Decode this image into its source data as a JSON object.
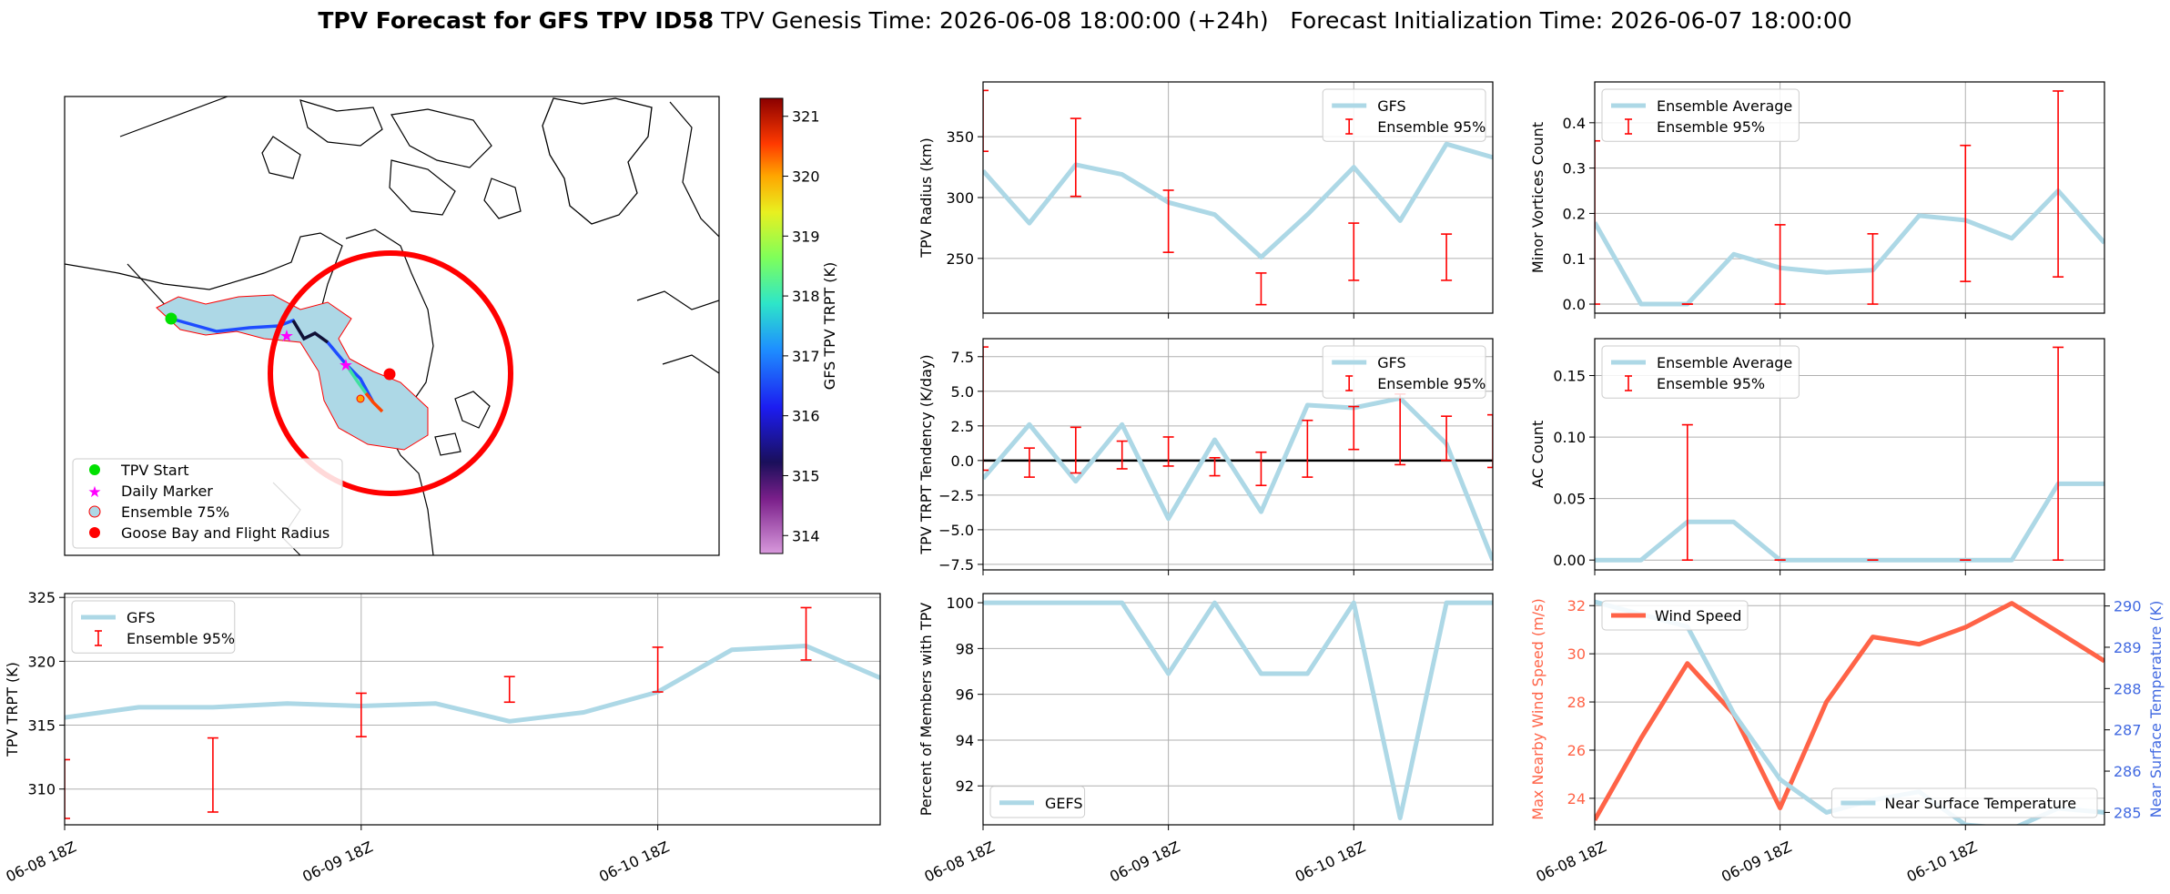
{
  "header": {
    "title_bold": "TPV Forecast for GFS TPV ID58",
    "title_rest": "TPV Genesis Time: 2026-06-08 18:00:00 (+24h)   Forecast Initialization Time: 2026-06-07 18:00:00"
  },
  "colors": {
    "gfs": "#add8e6",
    "ensemble": "#ff0000",
    "wind": "#ff6347",
    "temp_axis": "#4169e1",
    "zero_line": "#000000"
  },
  "map": {
    "colorbar_label": "GFS TPV TRPT (K)",
    "colorbar_ticks": [
      "314",
      "315",
      "316",
      "317",
      "318",
      "319",
      "320",
      "321"
    ],
    "colorbar_range": [
      313.7,
      321.3
    ],
    "legend": [
      "TPV Start",
      "Daily Marker",
      "Ensemble 75%",
      "Goose Bay and Flight Radius"
    ]
  },
  "chart_data": [
    {
      "id": "trpt",
      "type": "line",
      "ylabel": "TPV TRPT (K)",
      "xlim": [
        0,
        66
      ],
      "ylim": [
        307.2,
        325.3
      ],
      "yticks": [
        310,
        315,
        320,
        325
      ],
      "xticks": [
        0,
        24,
        48
      ],
      "xticklabels": [
        "06-08 18Z",
        "06-09 18Z",
        "06-10 18Z"
      ],
      "legend": [
        "GFS",
        "Ensemble 95%"
      ],
      "legend_loc": "upper left",
      "grid": true,
      "series": [
        {
          "name": "GFS",
          "x": [
            0,
            6,
            12,
            18,
            24,
            30,
            36,
            42,
            48,
            54,
            60,
            66
          ],
          "y": [
            315.6,
            316.4,
            316.4,
            316.7,
            316.5,
            316.7,
            315.3,
            316.0,
            317.6,
            320.9,
            321.2,
            318.7
          ]
        }
      ],
      "errorbars": [
        {
          "x": 0,
          "low": 307.7,
          "high": 312.3
        },
        {
          "x": 12,
          "low": 308.2,
          "high": 314.0
        },
        {
          "x": 24,
          "low": 314.1,
          "high": 317.5
        },
        {
          "x": 36,
          "low": 316.8,
          "high": 318.8
        },
        {
          "x": 48,
          "low": 317.6,
          "high": 321.1
        },
        {
          "x": 60,
          "low": 320.1,
          "high": 324.2
        }
      ]
    },
    {
      "id": "radius",
      "type": "line",
      "ylabel": "TPV Radius (km)",
      "xlim": [
        0,
        66
      ],
      "ylim": [
        205,
        395
      ],
      "yticks": [
        250,
        300,
        350
      ],
      "xticks": [
        0,
        24,
        48
      ],
      "xticklabels": [],
      "legend": [
        "GFS",
        "Ensemble 95%"
      ],
      "legend_loc": "upper right",
      "grid": true,
      "series": [
        {
          "name": "GFS",
          "x": [
            0,
            6,
            12,
            18,
            24,
            30,
            36,
            42,
            48,
            54,
            60,
            66
          ],
          "y": [
            322,
            279,
            327,
            319,
            296,
            286,
            251,
            286,
            325,
            281,
            344,
            333
          ]
        }
      ],
      "errorbars": [
        {
          "x": 0,
          "low": 338,
          "high": 388
        },
        {
          "x": 12,
          "low": 301,
          "high": 365
        },
        {
          "x": 24,
          "low": 255,
          "high": 306
        },
        {
          "x": 36,
          "low": 212,
          "high": 238
        },
        {
          "x": 48,
          "low": 232,
          "high": 279
        },
        {
          "x": 60,
          "low": 232,
          "high": 270
        }
      ]
    },
    {
      "id": "tendency",
      "type": "line",
      "ylabel": "TPV TRPT Tendency (K/day)",
      "xlim": [
        0,
        66
      ],
      "ylim": [
        -7.9,
        8.8
      ],
      "yticks": [
        -7.5,
        -5.0,
        -2.5,
        0.0,
        2.5,
        5.0,
        7.5
      ],
      "yticklabels": [
        "−7.5",
        "−5.0",
        "−2.5",
        "0.0",
        "2.5",
        "5.0",
        "7.5"
      ],
      "xticks": [
        0,
        24,
        48
      ],
      "xticklabels": [],
      "hline": 0,
      "legend": [
        "GFS",
        "Ensemble 95%"
      ],
      "legend_loc": "upper right",
      "grid": true,
      "series": [
        {
          "name": "GFS",
          "x": [
            0,
            6,
            12,
            18,
            24,
            30,
            36,
            42,
            48,
            54,
            60,
            66
          ],
          "y": [
            -1.3,
            2.6,
            -1.5,
            2.6,
            -4.2,
            1.5,
            -3.7,
            4.0,
            3.8,
            4.5,
            1.2,
            -7.2
          ]
        }
      ],
      "errorbars": [
        {
          "x": 0,
          "low": -0.7,
          "high": 8.2
        },
        {
          "x": 6,
          "low": -1.2,
          "high": 0.9
        },
        {
          "x": 12,
          "low": -0.9,
          "high": 2.4
        },
        {
          "x": 18,
          "low": -0.6,
          "high": 1.4
        },
        {
          "x": 24,
          "low": -0.4,
          "high": 1.7
        },
        {
          "x": 30,
          "low": -1.1,
          "high": 0.2
        },
        {
          "x": 36,
          "low": -1.8,
          "high": 0.6
        },
        {
          "x": 42,
          "low": -1.2,
          "high": 2.9
        },
        {
          "x": 48,
          "low": 0.8,
          "high": 3.9
        },
        {
          "x": 54,
          "low": -0.3,
          "high": 4.8
        },
        {
          "x": 60,
          "low": 0.0,
          "high": 3.2
        },
        {
          "x": 66,
          "low": -0.5,
          "high": 3.3
        }
      ]
    },
    {
      "id": "members",
      "type": "line",
      "ylabel": "Percent of Members with TPV",
      "xlim": [
        0,
        66
      ],
      "ylim": [
        90.3,
        100.4
      ],
      "yticks": [
        92,
        94,
        96,
        98,
        100
      ],
      "xticks": [
        0,
        24,
        48
      ],
      "xticklabels": [
        "06-08 18Z",
        "06-09 18Z",
        "06-10 18Z"
      ],
      "legend": [
        "GEFS"
      ],
      "legend_loc": "lower left",
      "grid": true,
      "series": [
        {
          "name": "GEFS",
          "x": [
            0,
            6,
            12,
            18,
            24,
            30,
            36,
            42,
            48,
            54,
            60,
            66
          ],
          "y": [
            100,
            100,
            100,
            100,
            96.9,
            100,
            96.9,
            96.9,
            100,
            90.6,
            100,
            100
          ]
        }
      ]
    },
    {
      "id": "minor",
      "type": "line",
      "ylabel": "Minor Vortices Count",
      "xlim": [
        0,
        66
      ],
      "ylim": [
        -0.02,
        0.49
      ],
      "yticks": [
        0.0,
        0.1,
        0.2,
        0.3,
        0.4
      ],
      "yticklabels": [
        "0.0",
        "0.1",
        "0.2",
        "0.3",
        "0.4"
      ],
      "xticks": [
        0,
        24,
        48
      ],
      "xticklabels": [],
      "legend": [
        "Ensemble Average",
        "Ensemble 95%"
      ],
      "legend_loc": "upper left",
      "grid": true,
      "series": [
        {
          "name": "Ensemble Average",
          "x": [
            0,
            6,
            12,
            18,
            24,
            30,
            36,
            42,
            48,
            54,
            60,
            66
          ],
          "y": [
            0.18,
            0.0,
            0.0,
            0.11,
            0.08,
            0.07,
            0.075,
            0.195,
            0.185,
            0.145,
            0.25,
            0.135
          ]
        }
      ],
      "errorbars": [
        {
          "x": 0,
          "low": 0.0,
          "high": 0.36
        },
        {
          "x": 12,
          "low": 0.0,
          "high": 0.0
        },
        {
          "x": 24,
          "low": 0.0,
          "high": 0.175
        },
        {
          "x": 36,
          "low": 0.0,
          "high": 0.155
        },
        {
          "x": 48,
          "low": 0.05,
          "high": 0.35
        },
        {
          "x": 60,
          "low": 0.06,
          "high": 0.47
        }
      ]
    },
    {
      "id": "ac",
      "type": "line",
      "ylabel": "AC Count",
      "xlim": [
        0,
        66
      ],
      "ylim": [
        -0.008,
        0.18
      ],
      "yticks": [
        0.0,
        0.05,
        0.1,
        0.15
      ],
      "yticklabels": [
        "0.00",
        "0.05",
        "0.10",
        "0.15"
      ],
      "xticks": [
        0,
        24,
        48
      ],
      "xticklabels": [],
      "legend": [
        "Ensemble Average",
        "Ensemble 95%"
      ],
      "legend_loc": "upper left",
      "grid": true,
      "series": [
        {
          "name": "Ensemble Average",
          "x": [
            0,
            6,
            12,
            18,
            24,
            30,
            36,
            42,
            48,
            54,
            60,
            66
          ],
          "y": [
            0.0,
            0.0,
            0.031,
            0.031,
            0.0,
            0.0,
            0.0,
            0.0,
            0.0,
            0.0,
            0.062,
            0.062
          ]
        }
      ],
      "errorbars": [
        {
          "x": 12,
          "low": 0.0,
          "high": 0.11
        },
        {
          "x": 24,
          "low": 0.0,
          "high": 0.0
        },
        {
          "x": 36,
          "low": 0.0,
          "high": 0.0
        },
        {
          "x": 48,
          "low": 0.0,
          "high": 0.0
        },
        {
          "x": 60,
          "low": 0.0,
          "high": 0.173
        }
      ]
    },
    {
      "id": "wind",
      "type": "line",
      "ylabel": "Max Nearby Wind Speed (m/s)",
      "y2label": "Near Surface Temperature (K)",
      "xlim": [
        0,
        66
      ],
      "ylim": [
        22.9,
        32.5
      ],
      "yticks": [
        24,
        26,
        28,
        30,
        32
      ],
      "y2lim": [
        284.7,
        290.3
      ],
      "y2ticks": [
        285,
        286,
        287,
        288,
        289,
        290
      ],
      "xticks": [
        0,
        24,
        48
      ],
      "xticklabels": [
        "06-08 18Z",
        "06-09 18Z",
        "06-10 18Z"
      ],
      "legend_left": "Wind Speed",
      "legend_right": "Near Surface Temperature",
      "grid": true,
      "series": [
        {
          "name": "Wind Speed",
          "axis": "left",
          "x": [
            0,
            6,
            12,
            18,
            24,
            30,
            36,
            42,
            48,
            54,
            60,
            66
          ],
          "y": [
            23.1,
            26.5,
            29.6,
            27.5,
            23.6,
            28.0,
            30.7,
            30.4,
            31.1,
            32.1,
            30.9,
            29.7
          ]
        },
        {
          "name": "Near Surface Temperature",
          "axis": "right",
          "x": [
            0,
            6,
            12,
            18,
            24,
            30,
            36,
            42,
            48,
            54,
            60,
            66
          ],
          "y": [
            290.1,
            289.8,
            289.5,
            287.4,
            285.8,
            285.0,
            285.3,
            285.5,
            284.7,
            284.6,
            285.1,
            285.0
          ]
        }
      ]
    }
  ]
}
